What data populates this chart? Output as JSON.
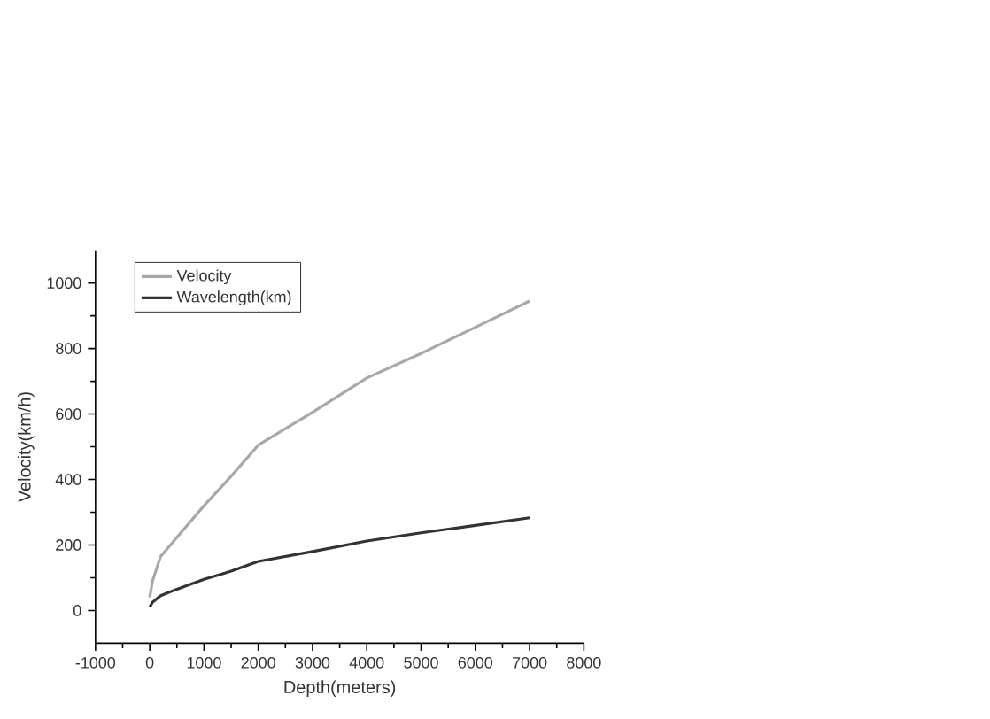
{
  "chart_data": {
    "type": "line",
    "xlabel": "Depth(meters)",
    "ylabel": "Velocity(km/h)",
    "xlim": [
      -1000,
      8000
    ],
    "ylim": [
      -100,
      1100
    ],
    "xticks": [
      -1000,
      0,
      1000,
      2000,
      3000,
      4000,
      5000,
      6000,
      7000,
      8000
    ],
    "yticks": [
      0,
      200,
      400,
      600,
      800,
      1000
    ],
    "legend": "top left",
    "grid": false,
    "marker": "none",
    "line_style": "solid",
    "series": [
      {
        "name": "Velocity",
        "color": "#a8a8a8",
        "x": [
          0,
          50,
          200,
          1000,
          1500,
          2000,
          3000,
          4000,
          5000,
          6000,
          7000
        ],
        "values": [
          40,
          90,
          165,
          320,
          410,
          505,
          605,
          710,
          785,
          865,
          945
        ]
      },
      {
        "name": "Wavelength(km)",
        "color": "#333333",
        "x": [
          0,
          50,
          200,
          500,
          1000,
          1500,
          2000,
          3000,
          4000,
          5000,
          6000,
          7000
        ],
        "values": [
          10,
          25,
          45,
          65,
          95,
          120,
          150,
          180,
          212,
          237,
          260,
          283
        ]
      }
    ]
  }
}
